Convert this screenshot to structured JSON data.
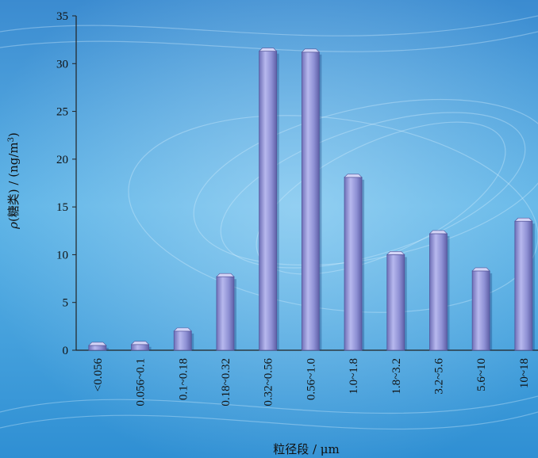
{
  "chart_data": {
    "type": "bar",
    "categories": [
      "<0.056",
      "0.056~0.1",
      "0.1~0.18",
      "0.18~0.32",
      "0.32~0.56",
      "0.56~1.0",
      "1.0~1.8",
      "1.8~3.2",
      "3.2~5.6",
      "5.6~10",
      "10~18"
    ],
    "values": [
      0.5,
      0.6,
      2.0,
      7.7,
      31.3,
      31.2,
      18.1,
      10.0,
      12.2,
      8.3,
      13.5
    ],
    "xlabel": "粒径段 / μm",
    "ylabel_prefix": "ρ",
    "ylabel_body": "(糖类) / (ng/m",
    "ylabel_sup": "3",
    "ylabel_close": ")",
    "ylim": [
      0,
      35
    ],
    "yticks": [
      "0",
      "5",
      "10",
      "15",
      "20",
      "25",
      "30",
      "35"
    ],
    "grid": false,
    "bar_color": "#8e90d4"
  }
}
